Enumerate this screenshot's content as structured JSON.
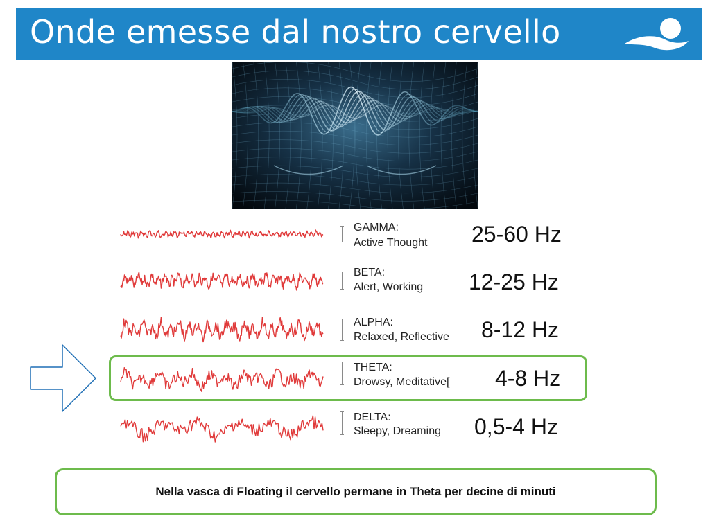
{
  "header": {
    "title": "Onde emesse dal nostro cervello"
  },
  "waves": [
    {
      "name": "GAMMA:",
      "desc": "Active Thought",
      "freq": "25-60 Hz"
    },
    {
      "name": "BETA:",
      "desc": "Alert, Working",
      "freq": "12-25 Hz"
    },
    {
      "name": "ALPHA:",
      "desc": "Relaxed, Reflective",
      "freq": "8-12 Hz"
    },
    {
      "name": "THETA:",
      "desc": "Drowsy, Meditative[",
      "freq": "4-8 Hz"
    },
    {
      "name": "DELTA:",
      "desc": "Sleepy, Dreaming",
      "freq": "0,5-4 Hz"
    }
  ],
  "note": {
    "text": "Nella vasca di Floating il cervello permane in Theta per decine di minuti"
  },
  "colors": {
    "header_bg": "#1f86c8",
    "wave": "#e03a3a",
    "highlight": "#6dbb4c",
    "arrow": "#1f6fb5"
  }
}
